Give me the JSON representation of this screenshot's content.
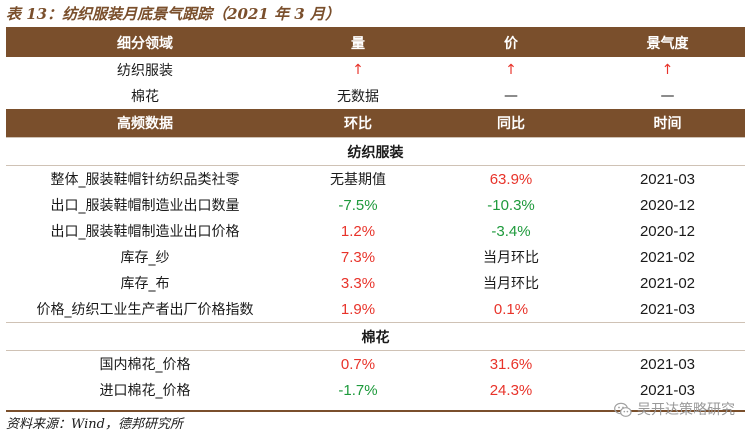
{
  "title": "表 13：纺织服装月底景气跟踪（2021 年 3 月）",
  "summary": {
    "headers": [
      "细分领域",
      "量",
      "价",
      "景气度"
    ],
    "rows": [
      {
        "name": "纺织服装",
        "volume": "↑",
        "price": "↑",
        "sentiment": "↑"
      },
      {
        "name": "棉花",
        "volume": "无数据",
        "price": "—",
        "sentiment": "—"
      }
    ]
  },
  "detail": {
    "headers": [
      "高频数据",
      "环比",
      "同比",
      "时间"
    ],
    "sections": [
      {
        "name": "纺织服装",
        "rows": [
          {
            "name": "整体_服装鞋帽针纺织品类社零",
            "mom": "无基期值",
            "yoy": "63.9%",
            "time": "2021-03"
          },
          {
            "name": "出口_服装鞋帽制造业出口数量",
            "mom": "-7.5%",
            "yoy": "-10.3%",
            "time": "2020-12"
          },
          {
            "name": "出口_服装鞋帽制造业出口价格",
            "mom": "1.2%",
            "yoy": "-3.4%",
            "time": "2020-12"
          },
          {
            "name": "库存_纱",
            "mom": "7.3%",
            "yoy": "当月环比",
            "time": "2021-02"
          },
          {
            "name": "库存_布",
            "mom": "3.3%",
            "yoy": "当月环比",
            "time": "2021-02"
          },
          {
            "name": "价格_纺织工业生产者出厂价格指数",
            "mom": "1.9%",
            "yoy": "0.1%",
            "time": "2021-03"
          }
        ]
      },
      {
        "name": "棉花",
        "rows": [
          {
            "name": "国内棉花_价格",
            "mom": "0.7%",
            "yoy": "31.6%",
            "time": "2021-03"
          },
          {
            "name": "进口棉花_价格",
            "mom": "-1.7%",
            "yoy": "24.3%",
            "time": "2021-03"
          }
        ]
      }
    ]
  },
  "source": "资料来源：Wind，德邦研究所",
  "watermark": {
    "text": "吴开达策略研究",
    "icon": "wechat-icon"
  },
  "colors": {
    "brown": "#7a4f2c",
    "up": "#e8332a",
    "down": "#1e9a3c"
  }
}
